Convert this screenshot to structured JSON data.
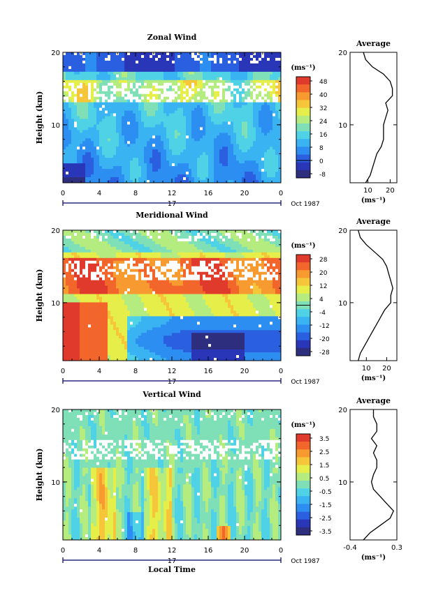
{
  "chart_data": [
    {
      "type": "heatmap",
      "title": "Zonal Wind",
      "xlabel": "",
      "ylabel": "Height (km)",
      "x_ticks": [
        "0",
        "4",
        "8",
        "12",
        "16",
        "20",
        "0"
      ],
      "y_ticks": [
        "20",
        "10"
      ],
      "xlim": [
        0,
        24
      ],
      "ylim": [
        2,
        20
      ],
      "date_label": "17",
      "date_suffix": "Oct 1987",
      "colorbar": {
        "unit": "(ms⁻¹)",
        "ticks": [
          "48",
          "40",
          "32",
          "24",
          "16",
          "8",
          "0",
          "-8"
        ],
        "min": -8,
        "max": 52
      },
      "profile": {
        "title": "Average",
        "xlabel": "(ms⁻¹)",
        "x_ticks": [
          "10",
          "20"
        ],
        "xlim": [
          2,
          23
        ],
        "y_ticks": [
          "20",
          "10"
        ],
        "heights": [
          2,
          3,
          4,
          5,
          6,
          7,
          8,
          9,
          10,
          11,
          12,
          13,
          14,
          15,
          16,
          17,
          18,
          19,
          20
        ],
        "values": [
          9,
          11,
          12,
          13,
          14,
          16,
          17,
          17,
          17,
          18,
          19,
          18,
          21,
          21,
          20,
          17,
          12,
          9,
          8
        ]
      },
      "colors": [
        "#2e2e7e",
        "#2a36b8",
        "#2a5fe0",
        "#2d8ef2",
        "#3ab3f2",
        "#4fd2e6",
        "#7fe0b8",
        "#b4ec80",
        "#e6ef4a",
        "#f6c63a",
        "#f79a30",
        "#f2662c",
        "#e03a2c"
      ]
    },
    {
      "type": "heatmap",
      "title": "Meridional Wind",
      "xlabel": "",
      "ylabel": "Height (km)",
      "x_ticks": [
        "0",
        "4",
        "8",
        "12",
        "16",
        "20",
        "0"
      ],
      "y_ticks": [
        "20",
        "10"
      ],
      "xlim": [
        0,
        24
      ],
      "ylim": [
        2,
        20
      ],
      "date_label": "17",
      "date_suffix": "Oct 1987",
      "colorbar": {
        "unit": "(ms⁻¹)",
        "ticks": [
          "28",
          "20",
          "12",
          "4",
          "-4",
          "-12",
          "-20",
          "-28"
        ],
        "min": -30,
        "max": 32
      },
      "profile": {
        "title": "Average",
        "xlabel": "(ms⁻¹)",
        "x_ticks": [
          "10",
          "20"
        ],
        "xlim": [
          2,
          25
        ],
        "y_ticks": [
          "20",
          "10"
        ],
        "heights": [
          2,
          3,
          4,
          5,
          6,
          7,
          8,
          9,
          10,
          11,
          12,
          13,
          14,
          15,
          16,
          17,
          18,
          19,
          20
        ],
        "values": [
          6,
          7,
          9,
          11,
          13,
          15,
          17,
          19,
          22,
          22,
          23,
          22,
          21,
          20,
          18,
          14,
          10,
          7,
          6
        ]
      },
      "colors": [
        "#2e2e7e",
        "#2a36b8",
        "#2a5fe0",
        "#2d8ef2",
        "#3ab3f2",
        "#4fd2e6",
        "#7fe0b8",
        "#b4ec80",
        "#e6ef4a",
        "#f6c63a",
        "#f79a30",
        "#f2662c",
        "#e03a2c"
      ]
    },
    {
      "type": "heatmap",
      "title": "Vertical Wind",
      "xlabel": "Local Time",
      "ylabel": "Height (km)",
      "x_ticks": [
        "0",
        "4",
        "8",
        "12",
        "16",
        "20",
        "0"
      ],
      "y_ticks": [
        "20",
        "10"
      ],
      "xlim": [
        0,
        24
      ],
      "ylim": [
        2,
        20
      ],
      "date_label": "17",
      "date_suffix": "Oct 1987",
      "colorbar": {
        "unit": "(ms⁻¹)",
        "ticks": [
          "3.5",
          "2.5",
          "1.5",
          "0.5",
          "-0.5",
          "-1.5",
          "-2.5",
          "-3.5"
        ],
        "min": -4,
        "max": 4
      },
      "profile": {
        "title": "Average",
        "xlabel": "(ms⁻¹)",
        "x_ticks": [
          "-0.4",
          "0.3"
        ],
        "xlim": [
          -0.4,
          0.3
        ],
        "y_ticks": [
          "20",
          "10"
        ],
        "heights": [
          2,
          3,
          4,
          5,
          6,
          7,
          8,
          9,
          10,
          11,
          12,
          13,
          14,
          15,
          16,
          17,
          18,
          19,
          20
        ],
        "values": [
          -0.2,
          -0.1,
          0.05,
          0.2,
          0.25,
          0.15,
          0.05,
          -0.05,
          -0.08,
          -0.05,
          0.0,
          0.0,
          -0.05,
          0.0,
          -0.08,
          0.0,
          0.0,
          -0.05,
          -0.05
        ]
      },
      "colors": [
        "#2e2e7e",
        "#2a36b8",
        "#2a5fe0",
        "#2d8ef2",
        "#3ab3f2",
        "#4fd2e6",
        "#7fe0b8",
        "#b4ec80",
        "#e6ef4a",
        "#f6c63a",
        "#f79a30",
        "#f2662c",
        "#e03a2c"
      ]
    }
  ]
}
